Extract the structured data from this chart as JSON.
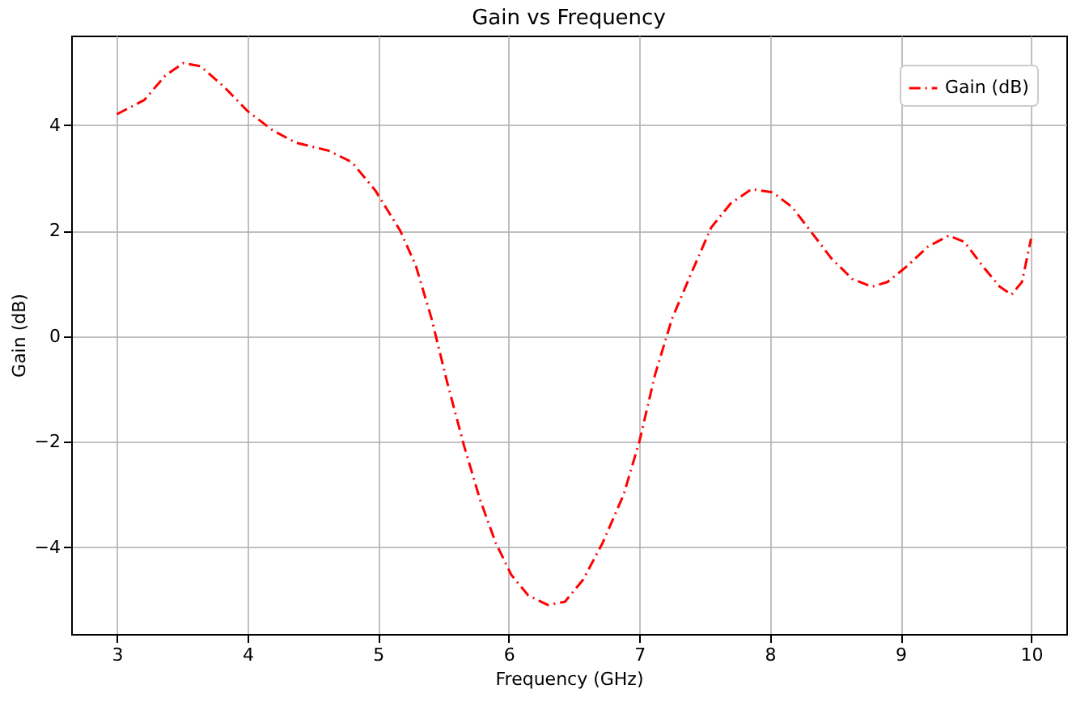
{
  "chart_data": {
    "type": "line",
    "title": "Gain vs Frequency",
    "xlabel": "Frequency (GHz)",
    "ylabel": "Gain (dB)",
    "series": [
      {
        "name": "Gain (dB)",
        "color": "#ff0000",
        "x": [
          3.0,
          3.21,
          3.37,
          3.51,
          3.64,
          3.82,
          4.0,
          4.19,
          4.37,
          4.62,
          4.8,
          4.98,
          5.17,
          5.29,
          5.41,
          5.53,
          5.66,
          5.78,
          5.9,
          6.02,
          6.15,
          6.3,
          6.43,
          6.57,
          6.72,
          6.88,
          7.0,
          7.12,
          7.25,
          7.39,
          7.55,
          7.7,
          7.86,
          8.02,
          8.17,
          8.31,
          8.47,
          8.63,
          8.78,
          8.9,
          9.05,
          9.21,
          9.37,
          9.49,
          9.63,
          9.76,
          9.85,
          9.93,
          10.0
        ],
        "values": [
          4.21,
          4.48,
          4.94,
          5.18,
          5.12,
          4.73,
          4.27,
          3.91,
          3.67,
          3.52,
          3.3,
          2.76,
          2.0,
          1.33,
          0.33,
          -0.88,
          -2.09,
          -3.09,
          -3.91,
          -4.52,
          -4.91,
          -5.09,
          -5.03,
          -4.61,
          -3.91,
          -3.0,
          -2.0,
          -0.73,
          0.33,
          1.15,
          2.06,
          2.52,
          2.79,
          2.73,
          2.45,
          2.0,
          1.48,
          1.09,
          0.94,
          1.03,
          1.33,
          1.7,
          1.91,
          1.79,
          1.33,
          0.94,
          0.79,
          1.03,
          1.85
        ]
      }
    ],
    "xlim": [
      2.65,
      10.27
    ],
    "ylim": [
      -5.64,
      5.7
    ],
    "xticks": [
      3,
      4,
      5,
      6,
      7,
      8,
      9,
      10
    ],
    "yticks": [
      -4,
      -2,
      0,
      2,
      4
    ],
    "grid": true,
    "legend": "top right",
    "marker": "none",
    "line_style": "dashdot"
  }
}
